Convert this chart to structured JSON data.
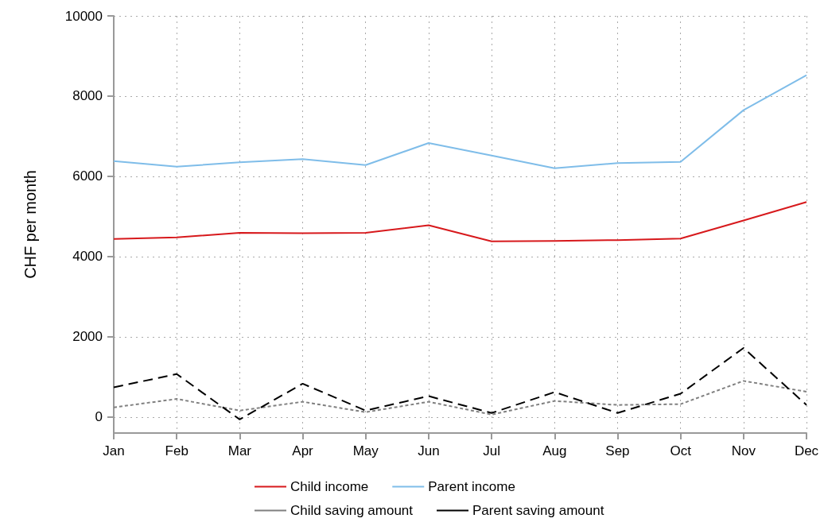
{
  "chart_data": {
    "type": "line",
    "ylabel": "CHF per month",
    "categories": [
      "Jan",
      "Feb",
      "Mar",
      "Apr",
      "May",
      "Jun",
      "Jul",
      "Aug",
      "Sep",
      "Oct",
      "Nov",
      "Dec"
    ],
    "series": [
      {
        "name": "Child income",
        "color": "#d7191c",
        "line_style": "solid",
        "values": [
          4440,
          4480,
          4590,
          4580,
          4590,
          4780,
          4380,
          4390,
          4410,
          4450,
          4900,
          5360
        ]
      },
      {
        "name": "Parent income",
        "color": "#7fbde9",
        "line_style": "solid",
        "values": [
          6380,
          6240,
          6350,
          6430,
          6280,
          6830,
          6520,
          6200,
          6330,
          6360,
          7650,
          8520
        ]
      },
      {
        "name": "Child saving amount",
        "color": "#808080",
        "line_style": "dotted",
        "values": [
          240,
          450,
          160,
          380,
          120,
          380,
          60,
          400,
          300,
          320,
          900,
          630
        ]
      },
      {
        "name": "Parent saving amount",
        "color": "#000000",
        "line_style": "dashed",
        "values": [
          740,
          1070,
          -60,
          830,
          160,
          520,
          100,
          620,
          100,
          580,
          1720,
          300
        ]
      }
    ],
    "ylim": [
      -400,
      10000
    ],
    "yticks": [
      0,
      2000,
      4000,
      6000,
      8000,
      10000
    ],
    "grid": true,
    "legend": "bottom",
    "marker": "none"
  }
}
